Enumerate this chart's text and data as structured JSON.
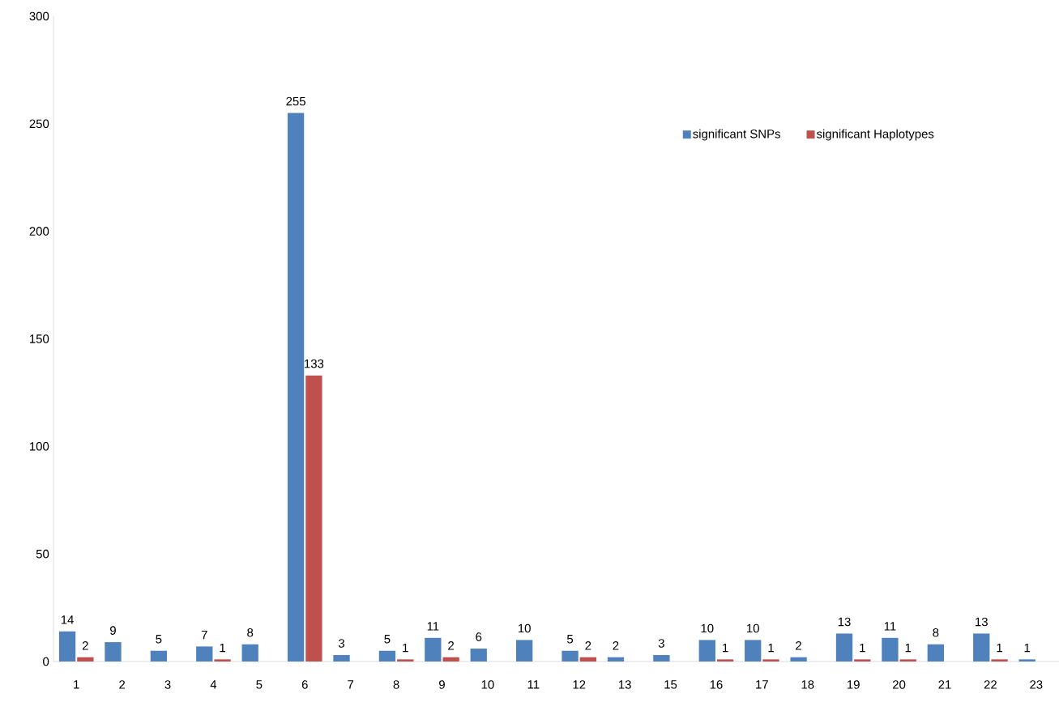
{
  "chart_data": {
    "type": "bar",
    "categories": [
      "1",
      "2",
      "3",
      "4",
      "5",
      "6",
      "7",
      "8",
      "9",
      "10",
      "11",
      "12",
      "13",
      "15",
      "16",
      "17",
      "18",
      "19",
      "20",
      "21",
      "22",
      "23"
    ],
    "series": [
      {
        "name": "significant SNPs",
        "color": "#4f81bd",
        "values": [
          14,
          9,
          5,
          7,
          8,
          255,
          3,
          5,
          11,
          6,
          10,
          5,
          2,
          3,
          10,
          10,
          2,
          13,
          11,
          8,
          13,
          1
        ]
      },
      {
        "name": "significant Haplotypes",
        "color": "#c0504d",
        "values": [
          2,
          null,
          null,
          1,
          null,
          133,
          null,
          1,
          2,
          null,
          null,
          2,
          null,
          null,
          1,
          1,
          null,
          1,
          1,
          null,
          1,
          null
        ]
      }
    ],
    "ylim": [
      0,
      300
    ],
    "yticks": [
      0,
      50,
      100,
      150,
      200,
      250,
      300
    ],
    "data_labels": true,
    "legend": "top right",
    "grid": false
  }
}
